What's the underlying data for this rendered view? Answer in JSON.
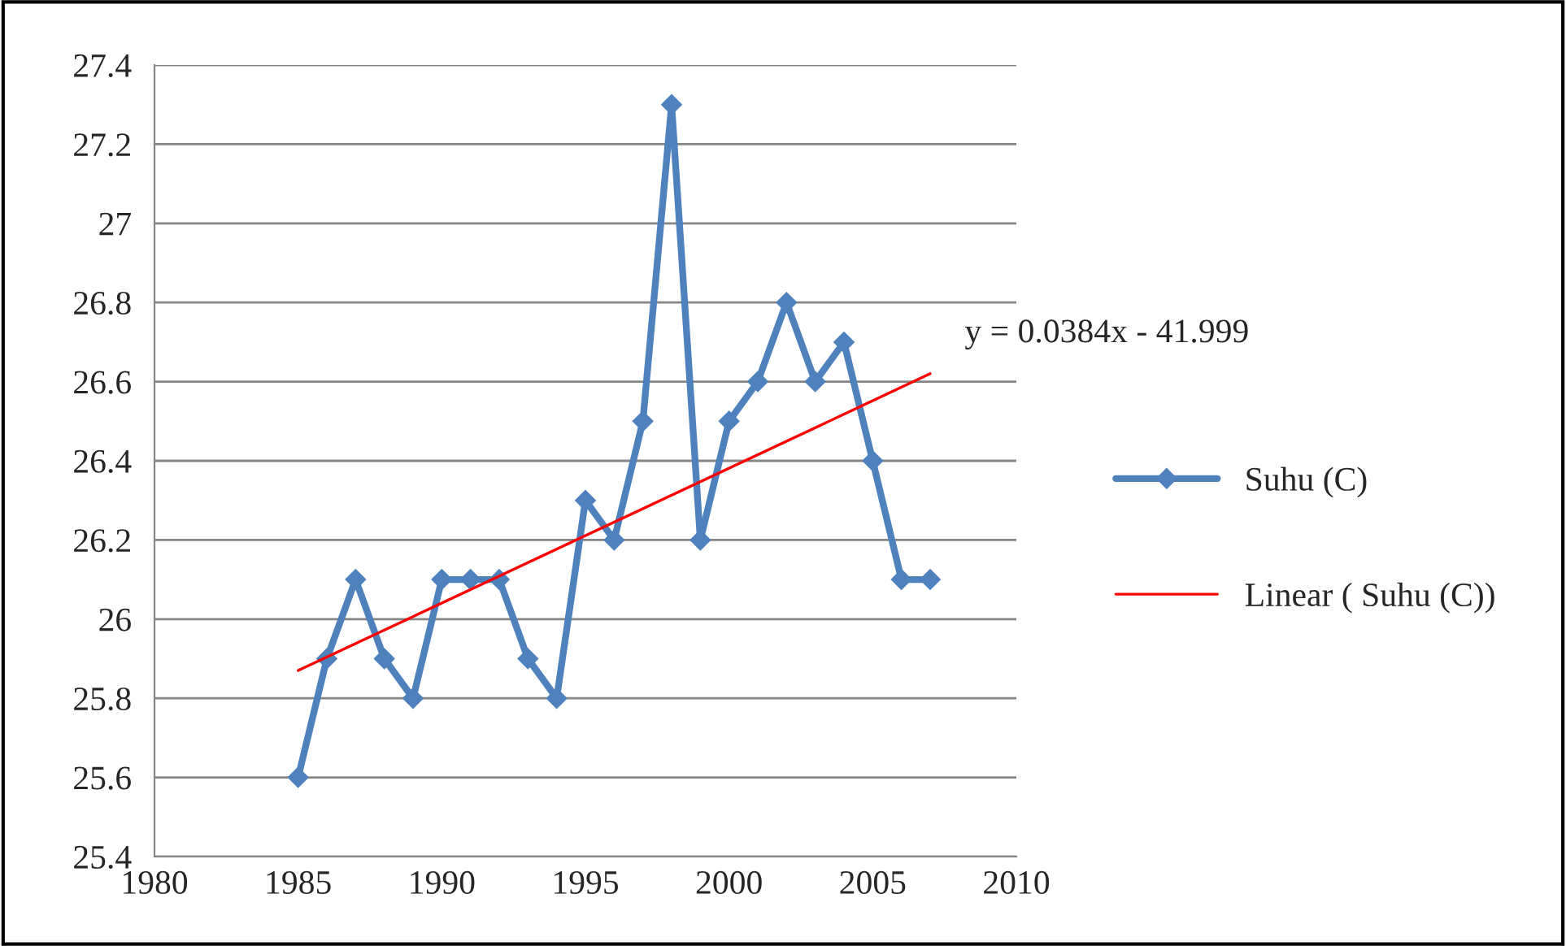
{
  "chart_data": {
    "type": "line",
    "x": [
      1985,
      1986,
      1987,
      1988,
      1989,
      1990,
      1991,
      1992,
      1993,
      1994,
      1995,
      1996,
      1997,
      1998,
      1999,
      2000,
      2001,
      2002,
      2003,
      2004,
      2005,
      2006,
      2007
    ],
    "series": [
      {
        "name": "Suhu (C)",
        "color": "#4f81bd",
        "marker": "diamond",
        "values": [
          25.6,
          25.9,
          26.1,
          25.9,
          25.8,
          26.1,
          26.1,
          26.1,
          25.9,
          25.8,
          26.3,
          26.2,
          26.5,
          27.3,
          26.2,
          26.5,
          26.6,
          26.8,
          26.6,
          26.7,
          26.4,
          26.1,
          26.1
        ]
      },
      {
        "name": "Linear ( Suhu (C))",
        "type": "line",
        "color": "#ff0000",
        "marker": "none",
        "x": [
          1985,
          2007
        ],
        "values": [
          25.87,
          26.62
        ]
      }
    ],
    "annotations": [
      "y = 0.0384x - 41.999"
    ],
    "xlim": [
      1980,
      2010
    ],
    "xticks": [
      1980,
      1985,
      1990,
      1995,
      2000,
      2005,
      2010
    ],
    "ylim": [
      25.4,
      27.4
    ],
    "yticks": [
      25.4,
      25.6,
      25.8,
      26,
      26.2,
      26.4,
      26.6,
      26.8,
      27,
      27.2,
      27.4
    ],
    "grid": "y",
    "legend": "right"
  }
}
